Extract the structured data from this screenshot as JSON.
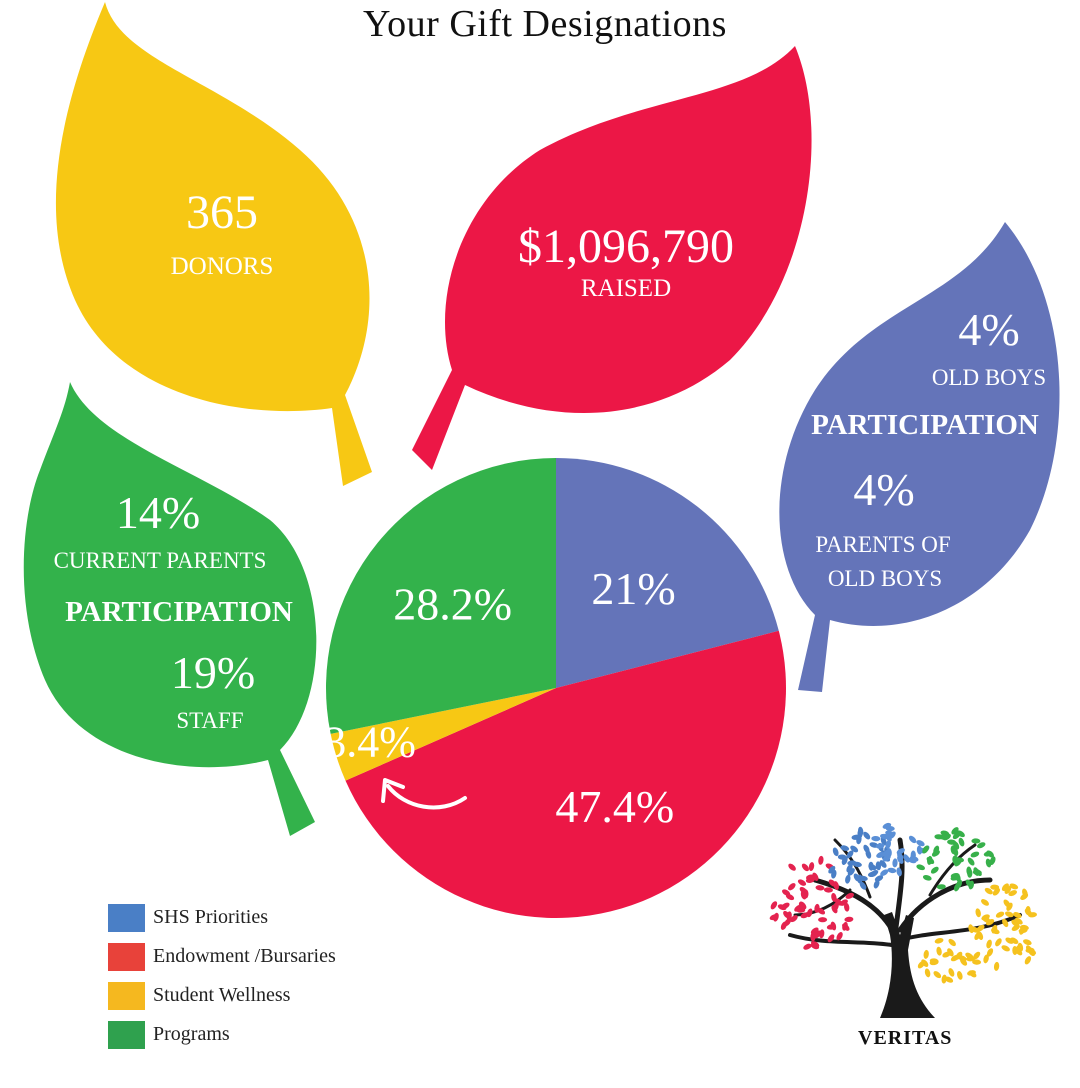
{
  "title": "Your Gift Designations",
  "leaves": {
    "donors": {
      "value": "365",
      "label": "DONORS",
      "color": "#f7c814"
    },
    "raised": {
      "value": "$1,096,790",
      "label": "RAISED",
      "color": "#ec1746"
    },
    "old_boys": {
      "old_boys_value": "4%",
      "old_boys_label": "OLD BOYS",
      "heading": "PARTICIPATION",
      "parents_value": "4%",
      "parents_label_1": "PARENTS OF",
      "parents_label_2": "OLD BOYS",
      "color": "#6474b9"
    },
    "current": {
      "parents_value": "14%",
      "parents_label": "CURRENT PARENTS",
      "heading": "PARTICIPATION",
      "staff_value": "19%",
      "staff_label": "STAFF",
      "color": "#33b24b"
    }
  },
  "chart_data": {
    "type": "pie",
    "slices": [
      {
        "label": "SHS Priorities",
        "value": 21,
        "display": "21%",
        "color": "#6474b9"
      },
      {
        "label": "Endowment /Bursaries",
        "value": 47.4,
        "display": "47.4%",
        "color": "#ec1746"
      },
      {
        "label": "Student Wellness",
        "value": 3.4,
        "display": "3.4%",
        "color": "#f7c814"
      },
      {
        "label": "Programs",
        "value": 28.2,
        "display": "28.2%",
        "color": "#33b24b"
      }
    ],
    "legend_placement": "bottom-left"
  },
  "legend": [
    {
      "label": "SHS Priorities",
      "color": "#4a7fc6"
    },
    {
      "label": "Endowment /Bursaries",
      "color": "#e8423a"
    },
    {
      "label": "Student Wellness",
      "color": "#f5b81f"
    },
    {
      "label": "Programs",
      "color": "#2fa14e"
    }
  ],
  "logo": {
    "text": "VERITAS"
  }
}
